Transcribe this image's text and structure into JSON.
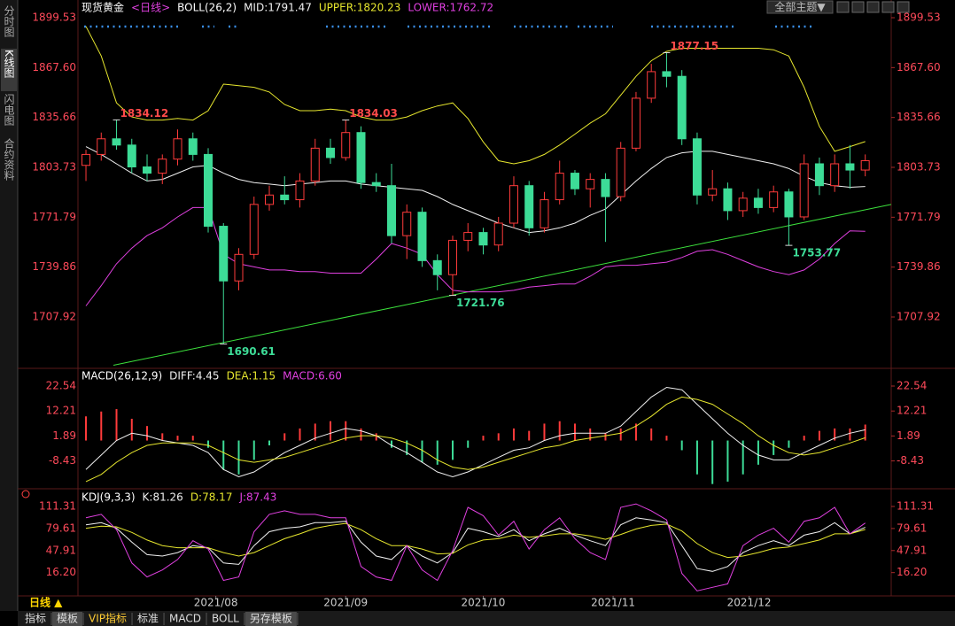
{
  "ui": {
    "sidebar_tabs": [
      "分时图",
      "K线图",
      "闪电图",
      "合约资料"
    ],
    "theme_button": "全部主题▼",
    "period": "日线 ▲",
    "toolbar": [
      "指标",
      "模板",
      "VIP指标",
      "标准",
      "MACD",
      "BOLL",
      "另存模板"
    ]
  },
  "chart_data": [
    {
      "type": "candlestick",
      "title": "现货黄金",
      "period_label": "<日线>",
      "indicator": "BOLL(26,2)",
      "open": [
        1805,
        1812,
        1822,
        1818,
        1804,
        1800,
        1809,
        1822,
        1812,
        1766,
        1731,
        1748,
        1780,
        1786,
        1783,
        1795,
        1816,
        1810,
        1826,
        1794,
        1792,
        1760,
        1775,
        1744,
        1735,
        1757,
        1762,
        1754,
        1768,
        1792,
        1765,
        1783,
        1800,
        1790,
        1796,
        1785,
        1816,
        1848,
        1865,
        1862,
        1822,
        1786,
        1790,
        1776,
        1784,
        1778,
        1788,
        1772,
        1806,
        1792,
        1806,
        1802
      ],
      "high": [
        1815,
        1826,
        1834.12,
        1822,
        1812,
        1812,
        1828,
        1826,
        1816,
        1768,
        1752,
        1785,
        1792,
        1798,
        1800,
        1822,
        1822,
        1834.03,
        1830,
        1800,
        1806,
        1780,
        1778,
        1748,
        1760,
        1768,
        1765,
        1772,
        1798,
        1795,
        1788,
        1808,
        1802,
        1800,
        1800,
        1820,
        1852,
        1870,
        1877.15,
        1866,
        1826,
        1802,
        1794,
        1788,
        1790,
        1792,
        1790,
        1812,
        1810,
        1812,
        1818,
        1812
      ],
      "low": [
        1795,
        1808,
        1815,
        1800,
        1795,
        1793,
        1805,
        1808,
        1762,
        1690.61,
        1725,
        1745,
        1776,
        1780,
        1778,
        1792,
        1806,
        1808,
        1790,
        1788,
        1755,
        1745,
        1740,
        1725,
        1721.76,
        1750,
        1748,
        1750,
        1765,
        1760,
        1762,
        1780,
        1786,
        1778,
        1756,
        1782,
        1814,
        1845,
        1855,
        1818,
        1780,
        1782,
        1770,
        1772,
        1774,
        1775,
        1753.77,
        1770,
        1786,
        1788,
        1790,
        1798
      ],
      "close": [
        1812,
        1822,
        1818,
        1804,
        1800,
        1809,
        1822,
        1812,
        1766,
        1731,
        1748,
        1780,
        1786,
        1783,
        1795,
        1816,
        1810,
        1826,
        1794,
        1792,
        1760,
        1775,
        1744,
        1735,
        1757,
        1762,
        1754,
        1768,
        1792,
        1765,
        1783,
        1800,
        1790,
        1796,
        1785,
        1816,
        1848,
        1865,
        1862,
        1822,
        1786,
        1790,
        1776,
        1784,
        1778,
        1788,
        1772,
        1806,
        1792,
        1806,
        1802,
        1808
      ],
      "up_color": "#ff3b3b",
      "down_color": "#3ddc97",
      "series": [
        {
          "name": "MID:1791.47",
          "color": "#f0f0f0",
          "values": [
            1817,
            1812,
            1806,
            1800,
            1795,
            1796,
            1800,
            1804,
            1805,
            1800,
            1796,
            1794,
            1793,
            1792,
            1793,
            1794,
            1795,
            1795,
            1793,
            1792,
            1791,
            1790,
            1789,
            1785,
            1780,
            1776,
            1772,
            1768,
            1765,
            1762,
            1763,
            1765,
            1768,
            1773,
            1777,
            1786,
            1795,
            1803,
            1810,
            1813,
            1814,
            1814,
            1812,
            1810,
            1808,
            1806,
            1803,
            1798,
            1794,
            1792,
            1791,
            1791.47
          ]
        },
        {
          "name": "UPPER:1820.23",
          "color": "#e6e62e",
          "values": [
            1894,
            1875,
            1845,
            1836,
            1834,
            1834,
            1835,
            1834,
            1840,
            1857,
            1856,
            1855,
            1852,
            1844,
            1840,
            1840,
            1841,
            1840,
            1836,
            1834,
            1834,
            1836,
            1840,
            1843,
            1845,
            1835,
            1820,
            1808,
            1806,
            1808,
            1812,
            1818,
            1825,
            1832,
            1838,
            1850,
            1862,
            1872,
            1878,
            1880,
            1880,
            1880,
            1880,
            1880,
            1880,
            1879,
            1875,
            1855,
            1830,
            1814,
            1817,
            1820.23
          ]
        },
        {
          "name": "LOWER:1762.72",
          "color": "#e040e0",
          "values": [
            1715,
            1728,
            1742,
            1752,
            1760,
            1765,
            1772,
            1778,
            1778,
            1748,
            1742,
            1740,
            1738,
            1738,
            1737,
            1737,
            1736,
            1736,
            1736,
            1745,
            1755,
            1752,
            1748,
            1735,
            1725,
            1724,
            1724,
            1724,
            1725,
            1727,
            1728,
            1729,
            1729,
            1734,
            1740,
            1741,
            1741,
            1742,
            1743,
            1746,
            1750,
            1751,
            1748,
            1744,
            1740,
            1737,
            1735,
            1738,
            1745,
            1755,
            1763,
            1762.72
          ]
        }
      ],
      "labeled_highs": [
        2,
        17,
        38
      ],
      "labeled_lows": [
        9,
        24,
        46
      ],
      "trendline": {
        "color": "#3ce03c",
        "x": [
          1.8,
          52.7
        ],
        "y": [
          1677,
          1780
        ]
      },
      "xlim": [
        -0.5,
        52.7
      ],
      "ylim": [
        1676,
        1906
      ],
      "yticks": [
        1899.53,
        {
          "value": 1867.6,
          "label": "1867.60"
        },
        1835.66,
        1803.73,
        1771.79,
        1739.86,
        1707.92
      ]
    },
    {
      "type": "macd",
      "title": "MACD(26,12,9)",
      "series": [
        {
          "name": "DIFF:4.45",
          "color": "#f0f0f0",
          "values": [
            -12,
            -6,
            0,
            3,
            2,
            0,
            -1,
            -2,
            -5,
            -12,
            -15,
            -13,
            -9,
            -5,
            -2,
            1,
            3,
            5,
            4,
            2,
            -2,
            -5,
            -9,
            -13,
            -15,
            -13,
            -10,
            -7,
            -4,
            -3,
            0,
            2,
            3,
            3,
            3,
            6,
            12,
            18,
            22,
            21,
            15,
            9,
            3,
            -2,
            -6,
            -8,
            -8,
            -5,
            -2,
            1,
            3,
            4.45
          ]
        },
        {
          "name": "DEA:1.15",
          "color": "#e6e62e",
          "values": [
            -17,
            -14,
            -9,
            -5,
            -2,
            -1,
            -1,
            -1,
            -2,
            -5,
            -8,
            -9,
            -8,
            -7,
            -5,
            -3,
            -1,
            1,
            2,
            2,
            1,
            -1,
            -4,
            -8,
            -11,
            -12,
            -11,
            -9,
            -7,
            -5,
            -3,
            -2,
            0,
            1,
            2,
            3,
            6,
            10,
            15,
            18,
            17,
            15,
            11,
            7,
            2,
            -2,
            -5,
            -6,
            -5,
            -3,
            -1,
            1.15
          ]
        }
      ],
      "histogram": {
        "name": "MACD:6.60",
        "color": "#e040e0",
        "up_color": "#ff3b3b",
        "down_color": "#3ddc97",
        "values": [
          10,
          12,
          13,
          9,
          6,
          3,
          2,
          2,
          -3,
          -12,
          -14,
          -8,
          -2,
          3,
          5,
          7,
          8,
          8,
          5,
          3,
          -3,
          -6,
          -9,
          -10,
          -8,
          -3,
          2,
          3,
          5,
          4,
          7,
          8,
          7,
          5,
          3,
          5,
          7,
          5,
          2,
          -4,
          -14,
          -18,
          -17,
          -14,
          -10,
          -6,
          -3,
          2,
          4,
          5,
          5,
          6.6
        ]
      },
      "xlim": [
        -0.5,
        52.7
      ],
      "ylim": [
        -19,
        28.4
      ],
      "yticks": [
        22.54,
        12.21,
        1.89,
        -8.43
      ]
    },
    {
      "type": "kdj",
      "title": "KDJ(9,3,3)",
      "series": [
        {
          "name": "K:81.26",
          "color": "#f0f0f0",
          "values": [
            85,
            88,
            80,
            60,
            42,
            40,
            45,
            55,
            52,
            30,
            28,
            55,
            75,
            80,
            82,
            88,
            88,
            90,
            60,
            40,
            35,
            55,
            40,
            30,
            45,
            80,
            75,
            68,
            78,
            62,
            72,
            80,
            70,
            62,
            55,
            85,
            95,
            92,
            88,
            55,
            22,
            18,
            25,
            45,
            55,
            62,
            55,
            70,
            75,
            88,
            72,
            81.26
          ]
        },
        {
          "name": "D:78.17",
          "color": "#e6e62e",
          "values": [
            80,
            83,
            82,
            74,
            63,
            55,
            52,
            52,
            52,
            45,
            40,
            45,
            55,
            65,
            72,
            80,
            84,
            87,
            78,
            65,
            55,
            55,
            50,
            43,
            44,
            56,
            63,
            65,
            70,
            67,
            69,
            72,
            72,
            69,
            64,
            71,
            79,
            84,
            86,
            76,
            58,
            45,
            38,
            40,
            45,
            51,
            53,
            58,
            63,
            72,
            72,
            78.17
          ]
        },
        {
          "name": "J:87.43",
          "color": "#e040e0",
          "values": [
            95,
            100,
            78,
            30,
            10,
            20,
            35,
            62,
            50,
            5,
            10,
            75,
            100,
            105,
            100,
            100,
            95,
            95,
            25,
            10,
            5,
            55,
            20,
            5,
            48,
            110,
            98,
            70,
            90,
            50,
            78,
            95,
            65,
            45,
            35,
            110,
            115,
            105,
            92,
            15,
            -10,
            -5,
            0,
            55,
            70,
            80,
            60,
            90,
            95,
            110,
            72,
            87.43
          ]
        }
      ],
      "xlim": [
        -0.5,
        52.7
      ],
      "ylim": [
        -14,
        129
      ],
      "yticks": [
        111.31,
        79.61,
        47.91,
        {
          "value": 16.2,
          "label": "16.20"
        }
      ],
      "xticks": [
        {
          "value": 8.5,
          "label": "2021/08"
        },
        {
          "value": 17,
          "label": "2021/09"
        },
        {
          "value": 26,
          "label": "2021/10"
        },
        {
          "value": 34.5,
          "label": "2021/11"
        },
        {
          "value": 43.4,
          "label": "2021/12"
        }
      ]
    }
  ]
}
